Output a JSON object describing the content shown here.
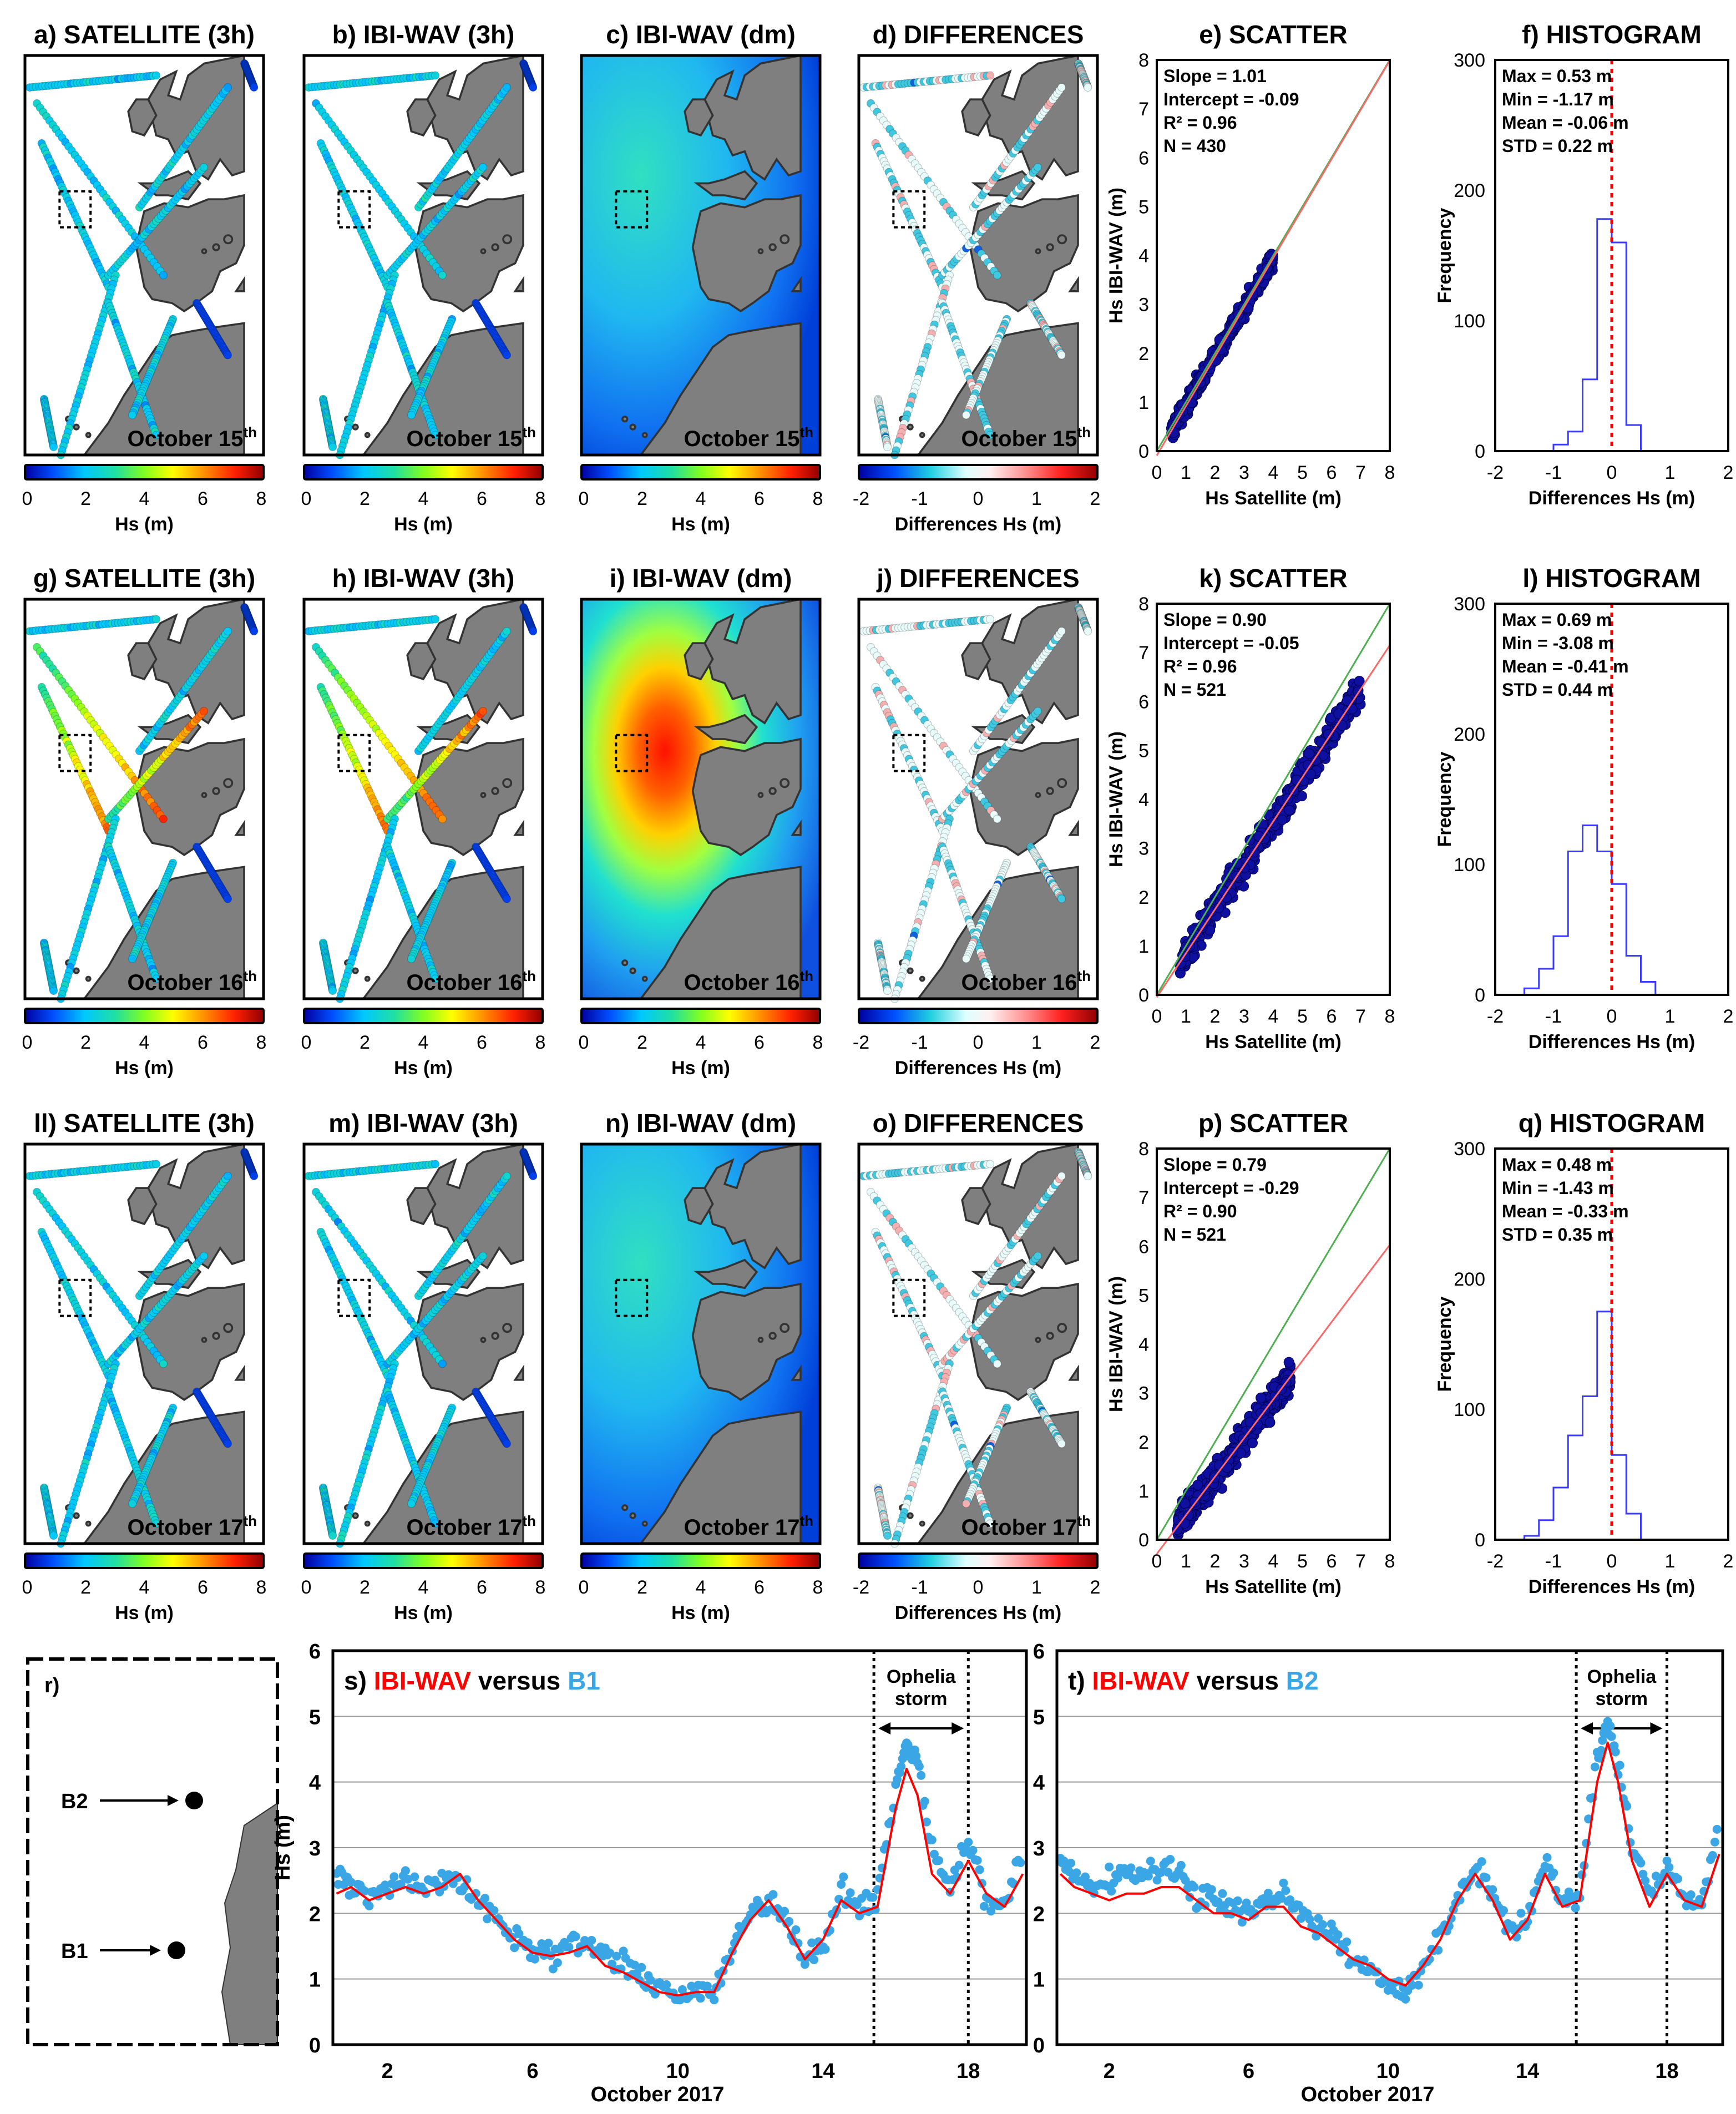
{
  "colors": {
    "land": "#7f7f7f",
    "ibi_red": "#ff0000",
    "buoy_blue": "#3aa6e6",
    "scatter_point": "#1010a0",
    "hist_line": "#3b3bff",
    "ref_green": "#4caf50",
    "fit_red": "#ff6666"
  },
  "map_panels": [
    {
      "row": 0,
      "col": 0,
      "title": "a) SATELLITE (3h)",
      "date": "October 15",
      "sup": "th",
      "cb_type": "hs",
      "cb_label": "Hs (m)",
      "cb_ticks": [
        "0",
        "2",
        "4",
        "6",
        "8"
      ],
      "style": "sat",
      "level": 0
    },
    {
      "row": 0,
      "col": 1,
      "title": "b) IBI-WAV (3h)",
      "date": "October 15",
      "sup": "th",
      "cb_type": "hs",
      "cb_label": "Hs (m)",
      "cb_ticks": [
        "0",
        "2",
        "4",
        "6",
        "8"
      ],
      "style": "sat",
      "level": 0
    },
    {
      "row": 0,
      "col": 2,
      "title": "c) IBI-WAV (dm)",
      "date": "October 15",
      "sup": "th",
      "cb_type": "hs",
      "cb_label": "Hs (m)",
      "cb_ticks": [
        "0",
        "2",
        "4",
        "6",
        "8"
      ],
      "style": "field",
      "level": 0
    },
    {
      "row": 0,
      "col": 3,
      "title": "d) DIFFERENCES",
      "date": "October 15",
      "sup": "th",
      "cb_type": "diff",
      "cb_label": "Differences Hs (m)",
      "cb_ticks": [
        "-2",
        "-1",
        "0",
        "1",
        "2"
      ],
      "style": "diff",
      "level": 0
    },
    {
      "row": 1,
      "col": 0,
      "title": "g) SATELLITE (3h)",
      "date": "October 16",
      "sup": "th",
      "cb_type": "hs",
      "cb_label": "Hs (m)",
      "cb_ticks": [
        "0",
        "2",
        "4",
        "6",
        "8"
      ],
      "style": "sat",
      "level": 1
    },
    {
      "row": 1,
      "col": 1,
      "title": "h) IBI-WAV (3h)",
      "date": "October 16",
      "sup": "th",
      "cb_type": "hs",
      "cb_label": "Hs (m)",
      "cb_ticks": [
        "0",
        "2",
        "4",
        "6",
        "8"
      ],
      "style": "sat",
      "level": 1
    },
    {
      "row": 1,
      "col": 2,
      "title": "i) IBI-WAV (dm)",
      "date": "October 16",
      "sup": "th",
      "cb_type": "hs",
      "cb_label": "Hs (m)",
      "cb_ticks": [
        "0",
        "2",
        "4",
        "6",
        "8"
      ],
      "style": "field",
      "level": 1
    },
    {
      "row": 1,
      "col": 3,
      "title": "j) DIFFERENCES",
      "date": "October 16",
      "sup": "th",
      "cb_type": "diff",
      "cb_label": "Differences Hs (m)",
      "cb_ticks": [
        "-2",
        "-1",
        "0",
        "1",
        "2"
      ],
      "style": "diff",
      "level": 1
    },
    {
      "row": 2,
      "col": 0,
      "title": "ll) SATELLITE (3h)",
      "date": "October 17",
      "sup": "th",
      "cb_type": "hs",
      "cb_label": "Hs (m)",
      "cb_ticks": [
        "0",
        "2",
        "4",
        "6",
        "8"
      ],
      "style": "sat",
      "level": 0
    },
    {
      "row": 2,
      "col": 1,
      "title": "m) IBI-WAV (3h)",
      "date": "October 17",
      "sup": "th",
      "cb_type": "hs",
      "cb_label": "Hs (m)",
      "cb_ticks": [
        "0",
        "2",
        "4",
        "6",
        "8"
      ],
      "style": "sat",
      "level": 0
    },
    {
      "row": 2,
      "col": 2,
      "title": "n) IBI-WAV (dm)",
      "date": "October 17",
      "sup": "th",
      "cb_type": "hs",
      "cb_label": "Hs (m)",
      "cb_ticks": [
        "0",
        "2",
        "4",
        "6",
        "8"
      ],
      "style": "field",
      "level": 0
    },
    {
      "row": 2,
      "col": 3,
      "title": "o) DIFFERENCES",
      "date": "October 17",
      "sup": "th",
      "cb_type": "diff",
      "cb_label": "Differences Hs (m)",
      "cb_ticks": [
        "-2",
        "-1",
        "0",
        "1",
        "2"
      ],
      "style": "diff",
      "level": 0
    }
  ],
  "chart_data": [
    {
      "type": "scatter",
      "row": 0,
      "title": "e) SCATTER",
      "xlabel": "Hs Satellite  (m)",
      "ylabel": "Hs IBI-WAV  (m)",
      "xlim": [
        0,
        8
      ],
      "ylim": [
        0,
        8
      ],
      "stats": [
        "Slope = 1.01",
        "Intercept = -0.09",
        "R² = 0.96",
        "N = 430"
      ],
      "slope": 1.01,
      "intercept": -0.09,
      "n": 430,
      "xrange": [
        0.5,
        4.0
      ],
      "spread": 0.18
    },
    {
      "type": "scatter",
      "row": 1,
      "title": "k) SCATTER",
      "xlabel": "Hs Satellite  (m)",
      "ylabel": "Hs IBI-WAV  (m)",
      "xlim": [
        0,
        8
      ],
      "ylim": [
        0,
        8
      ],
      "stats": [
        "Slope = 0.90",
        "Intercept = -0.05",
        "R² = 0.96",
        "N = 521"
      ],
      "slope": 0.9,
      "intercept": -0.05,
      "n": 521,
      "xrange": [
        0.8,
        7.0
      ],
      "spread": 0.3
    },
    {
      "type": "scatter",
      "row": 2,
      "title": "p) SCATTER",
      "xlabel": "Hs Satellite  (m)",
      "ylabel": "Hs IBI-WAV  (m)",
      "xlim": [
        0,
        8
      ],
      "ylim": [
        0,
        8
      ],
      "stats": [
        "Slope = 0.79",
        "Intercept = -0.29",
        "R² = 0.90",
        "N = 521"
      ],
      "slope": 0.79,
      "intercept": -0.29,
      "n": 521,
      "xrange": [
        0.7,
        4.6
      ],
      "spread": 0.28
    },
    {
      "type": "histogram",
      "row": 0,
      "title": "f) HISTOGRAM",
      "xlabel": "Differences Hs  (m)",
      "ylabel": "Frequency",
      "xlim": [
        -2,
        2
      ],
      "ylim": [
        0,
        300
      ],
      "stats": [
        "Max = 0.53 m",
        "Min = -1.17 m",
        "Mean = -0.06 m",
        "STD = 0.22 m"
      ],
      "bin_edges": [
        -1.0,
        -0.75,
        -0.5,
        -0.25,
        0,
        0.25,
        0.5
      ],
      "counts": [
        5,
        15,
        55,
        178,
        160,
        20
      ]
    },
    {
      "type": "histogram",
      "row": 1,
      "title": "l) HISTOGRAM",
      "xlabel": "Differences Hs  (m)",
      "ylabel": "Frequency",
      "xlim": [
        -2,
        2
      ],
      "ylim": [
        0,
        300
      ],
      "stats": [
        "Max = 0.69 m",
        "Min = -3.08 m",
        "Mean = -0.41 m",
        "STD = 0.44 m"
      ],
      "bin_edges": [
        -1.5,
        -1.25,
        -1.0,
        -0.75,
        -0.5,
        -0.25,
        0,
        0.25,
        0.5,
        0.75
      ],
      "counts": [
        5,
        20,
        45,
        110,
        130,
        110,
        85,
        30,
        10
      ]
    },
    {
      "type": "histogram",
      "row": 2,
      "title": "q) HISTOGRAM",
      "xlabel": "Differences Hs  (m)",
      "ylabel": "Frequency",
      "xlim": [
        -2,
        2
      ],
      "ylim": [
        0,
        300
      ],
      "stats": [
        "Max = 0.48 m",
        "Min = -1.43 m",
        "Mean = -0.33 m",
        "STD = 0.35 m"
      ],
      "bin_edges": [
        -1.5,
        -1.25,
        -1.0,
        -0.75,
        -0.5,
        -0.25,
        0,
        0.25,
        0.5
      ],
      "counts": [
        3,
        15,
        40,
        80,
        110,
        175,
        65,
        20
      ]
    },
    {
      "type": "line",
      "id": "s",
      "title_prefix": "s) ",
      "title_model": "IBI-WAV",
      "title_versus": " versus ",
      "title_buoy": "B1",
      "xlabel": "October 2017",
      "ylabel": "Hs (m)",
      "xlim": [
        0.5,
        19.6
      ],
      "ylim": [
        0,
        6
      ],
      "xticks": [
        "2",
        "6",
        "10",
        "14",
        "18"
      ],
      "yticks": [
        "0",
        "1",
        "2",
        "3",
        "4",
        "5",
        "6"
      ],
      "storm_label_1": "Ophelia",
      "storm_label_2": "storm",
      "storm_range": [
        15.4,
        18.0
      ],
      "series": [
        {
          "name": "IBI-WAV",
          "kind": "line",
          "x": [
            0.6,
            1.0,
            1.5,
            2.0,
            2.5,
            3.0,
            3.5,
            4.0,
            4.5,
            5.0,
            5.5,
            6.0,
            6.5,
            7.0,
            7.5,
            8.0,
            8.5,
            9.0,
            9.5,
            10.0,
            10.5,
            11.0,
            11.5,
            12.0,
            12.5,
            13.0,
            13.5,
            14.0,
            14.5,
            15.0,
            15.5,
            16.0,
            16.3,
            16.6,
            17.0,
            17.5,
            18.0,
            18.5,
            19.0,
            19.5
          ],
          "y": [
            2.3,
            2.4,
            2.2,
            2.3,
            2.4,
            2.3,
            2.4,
            2.6,
            2.2,
            1.9,
            1.6,
            1.4,
            1.35,
            1.4,
            1.5,
            1.2,
            1.1,
            0.95,
            0.8,
            0.75,
            0.8,
            0.8,
            1.4,
            1.9,
            2.2,
            1.8,
            1.3,
            1.6,
            2.2,
            2.0,
            2.1,
            3.6,
            4.2,
            3.8,
            2.6,
            2.3,
            2.8,
            2.3,
            2.1,
            2.6
          ]
        },
        {
          "name": "B1",
          "kind": "points",
          "y_offsets_range": 0.35,
          "x": [
            0.6,
            1.0,
            1.5,
            2.0,
            2.5,
            3.0,
            3.5,
            4.0,
            4.5,
            5.0,
            5.5,
            6.0,
            6.5,
            7.0,
            7.5,
            8.0,
            8.5,
            9.0,
            9.5,
            10.0,
            10.5,
            11.0,
            11.5,
            12.0,
            12.5,
            13.0,
            13.5,
            14.0,
            14.5,
            15.0,
            15.5,
            16.0,
            16.3,
            16.6,
            17.0,
            17.5,
            18.0,
            18.5,
            19.0,
            19.5
          ],
          "y": [
            2.6,
            2.5,
            2.2,
            2.4,
            2.5,
            2.4,
            2.5,
            2.5,
            2.2,
            1.9,
            1.6,
            1.4,
            1.4,
            1.5,
            1.6,
            1.3,
            1.2,
            1.0,
            0.85,
            0.8,
            0.8,
            0.75,
            1.5,
            2.0,
            2.2,
            1.9,
            1.3,
            1.5,
            2.3,
            2.1,
            2.2,
            4.0,
            4.6,
            4.3,
            2.9,
            2.4,
            3.1,
            2.2,
            2.2,
            2.9
          ]
        }
      ]
    },
    {
      "type": "line",
      "id": "t",
      "title_prefix": "t) ",
      "title_model": "IBI-WAV",
      "title_versus": " versus ",
      "title_buoy": "B2",
      "xlabel": "October 2017",
      "ylabel": "Hs (m)",
      "xlim": [
        0.5,
        19.6
      ],
      "ylim": [
        0,
        6
      ],
      "xticks": [
        "2",
        "6",
        "10",
        "14",
        "18"
      ],
      "yticks": [
        "0",
        "1",
        "2",
        "3",
        "4",
        "5",
        "6"
      ],
      "storm_label_1": "Ophelia",
      "storm_label_2": "storm",
      "storm_range": [
        15.4,
        18.0
      ],
      "series": [
        {
          "name": "IBI-WAV",
          "kind": "line",
          "x": [
            0.6,
            1.0,
            1.5,
            2.0,
            2.5,
            3.0,
            3.5,
            4.0,
            4.5,
            5.0,
            5.5,
            6.0,
            6.5,
            7.0,
            7.5,
            8.0,
            8.5,
            9.0,
            9.5,
            10.0,
            10.5,
            11.0,
            11.5,
            12.0,
            12.5,
            13.0,
            13.5,
            14.0,
            14.5,
            15.0,
            15.5,
            16.0,
            16.3,
            16.6,
            17.0,
            17.5,
            18.0,
            18.5,
            19.0,
            19.5
          ],
          "y": [
            2.6,
            2.4,
            2.3,
            2.2,
            2.3,
            2.3,
            2.4,
            2.4,
            2.2,
            2.0,
            2.0,
            1.9,
            2.1,
            2.1,
            1.8,
            1.7,
            1.5,
            1.3,
            1.2,
            1.0,
            0.9,
            1.2,
            1.6,
            2.2,
            2.6,
            2.2,
            1.6,
            1.9,
            2.6,
            2.1,
            2.2,
            4.0,
            4.6,
            4.0,
            2.8,
            2.1,
            2.6,
            2.2,
            2.1,
            2.9
          ]
        },
        {
          "name": "B2",
          "kind": "points",
          "y_offsets_range": 0.35,
          "x": [
            0.6,
            1.0,
            1.5,
            2.0,
            2.5,
            3.0,
            3.5,
            4.0,
            4.5,
            5.0,
            5.5,
            6.0,
            6.5,
            7.0,
            7.5,
            8.0,
            8.5,
            9.0,
            9.5,
            10.0,
            10.5,
            11.0,
            11.5,
            12.0,
            12.5,
            13.0,
            13.5,
            14.0,
            14.5,
            15.0,
            15.5,
            16.0,
            16.3,
            16.6,
            17.0,
            17.5,
            18.0,
            18.5,
            19.0,
            19.5
          ],
          "y": [
            2.8,
            2.6,
            2.4,
            2.5,
            2.6,
            2.6,
            2.7,
            2.6,
            2.3,
            2.2,
            2.1,
            2.0,
            2.2,
            2.3,
            2.0,
            1.8,
            1.6,
            1.3,
            1.1,
            0.9,
            0.8,
            1.2,
            1.6,
            2.2,
            2.7,
            2.3,
            1.7,
            1.9,
            2.8,
            2.2,
            2.3,
            4.4,
            4.9,
            4.2,
            3.0,
            2.3,
            2.7,
            2.1,
            2.2,
            3.3
          ]
        }
      ]
    }
  ],
  "buoy_map": {
    "title": "r)",
    "buoys": [
      {
        "name": "B2"
      },
      {
        "name": "B1"
      }
    ]
  }
}
